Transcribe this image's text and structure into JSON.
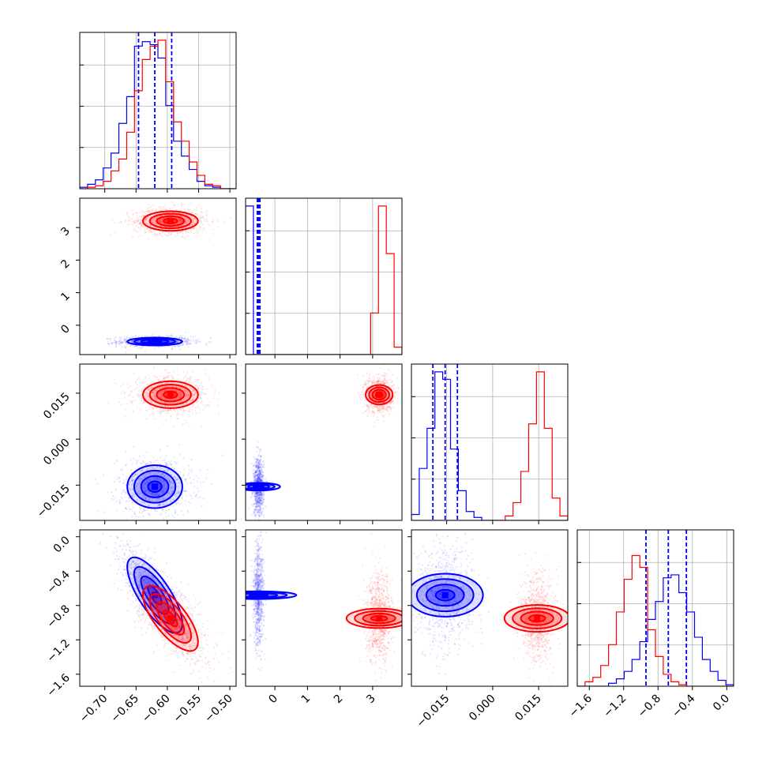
{
  "chart_data": {
    "type": "scatter",
    "subtype": "corner-plot",
    "grid": true,
    "legend": "none",
    "colors": {
      "blue": "#0000ff",
      "red": "#ff0000"
    },
    "parameters": [
      {
        "range": [
          -0.74,
          -0.49
        ],
        "ticks": [
          -0.7,
          -0.65,
          -0.6,
          -0.55,
          -0.5
        ],
        "tick_labels": [
          "−0.70",
          "−0.65",
          "−0.60",
          "−0.55",
          "−0.50"
        ]
      },
      {
        "range": [
          -0.9,
          3.9
        ],
        "ticks": [
          0,
          1,
          2,
          3
        ],
        "tick_labels": [
          "0",
          "1",
          "2",
          "3"
        ]
      },
      {
        "range": [
          -0.0265,
          0.0245
        ],
        "ticks": [
          -0.015,
          0.0,
          0.015
        ],
        "tick_labels": [
          "−0.015",
          "0.000",
          "0.015"
        ]
      },
      {
        "range": [
          -1.74,
          0.08
        ],
        "ticks": [
          -1.6,
          -1.2,
          -0.8,
          -0.4,
          0.0
        ],
        "tick_labels": [
          "−1.6",
          "−1.2",
          "−0.8",
          "−0.4",
          "0.0"
        ]
      }
    ],
    "series": [
      {
        "color": "blue",
        "mean": [
          -0.62,
          -0.5,
          -0.0155,
          -0.68
        ],
        "sd": [
          0.022,
          0.06,
          0.0035,
          0.22
        ],
        "quantiles": [
          [
            -0.646,
            -0.62,
            -0.593
          ],
          [
            -0.54,
            -0.5,
            -0.46
          ],
          [
            -0.0195,
            -0.0155,
            -0.0115
          ],
          [
            -0.94,
            -0.68,
            -0.47
          ]
        ],
        "corr": {
          "0-3": -0.75
        },
        "hist": [
          [
            0.01,
            0.03,
            0.06,
            0.14,
            0.24,
            0.44,
            0.62,
            0.96,
            0.99,
            0.97,
            0.88,
            0.56,
            0.32,
            0.22,
            0.13,
            0.05,
            0.02,
            0.01,
            0.0,
            0.0
          ],
          [
            1.0,
            0.0,
            0.0,
            0.0,
            0.0,
            0.0,
            0.0,
            0.0,
            0.0,
            0.0,
            0.0,
            0.0,
            0.0,
            0.0,
            0.0,
            0.0,
            0.0,
            0.0,
            0.0,
            0.0
          ],
          [
            0.04,
            0.35,
            0.62,
            1.0,
            0.95,
            0.48,
            0.2,
            0.06,
            0.02,
            0.0,
            0.0,
            0.0,
            0.0,
            0.0,
            0.0,
            0.0,
            0.0,
            0.0,
            0.0,
            0.0
          ],
          [
            0.0,
            0.0,
            0.0,
            0.0,
            0.02,
            0.05,
            0.1,
            0.18,
            0.3,
            0.45,
            0.57,
            0.73,
            0.75,
            0.63,
            0.5,
            0.33,
            0.18,
            0.1,
            0.04,
            0.01
          ]
        ]
      },
      {
        "color": "red",
        "mean": [
          -0.595,
          3.2,
          0.0145,
          -0.95
        ],
        "sd": [
          0.022,
          0.15,
          0.0022,
          0.19
        ],
        "quantiles": [],
        "corr": {
          "0-3": -0.72
        },
        "hist": [
          [
            0.0,
            0.01,
            0.02,
            0.05,
            0.12,
            0.2,
            0.38,
            0.66,
            0.87,
            0.96,
            1.0,
            0.72,
            0.45,
            0.32,
            0.18,
            0.09,
            0.03,
            0.02,
            0.0,
            0.0
          ],
          [
            0.0,
            0.0,
            0.0,
            0.0,
            0.0,
            0.0,
            0.0,
            0.0,
            0.0,
            0.0,
            0.0,
            0.0,
            0.0,
            0.0,
            0.0,
            0.0,
            0.28,
            1.0,
            0.68,
            0.05
          ],
          [
            0.0,
            0.0,
            0.0,
            0.0,
            0.0,
            0.0,
            0.0,
            0.0,
            0.0,
            0.0,
            0.0,
            0.0,
            0.03,
            0.12,
            0.33,
            0.65,
            1.0,
            0.62,
            0.15,
            0.03
          ],
          [
            0.0,
            0.03,
            0.06,
            0.14,
            0.28,
            0.5,
            0.72,
            0.88,
            0.8,
            0.38,
            0.2,
            0.08,
            0.03,
            0.01,
            0.0,
            0.0,
            0.0,
            0.0,
            0.0,
            0.0
          ]
        ]
      }
    ]
  }
}
